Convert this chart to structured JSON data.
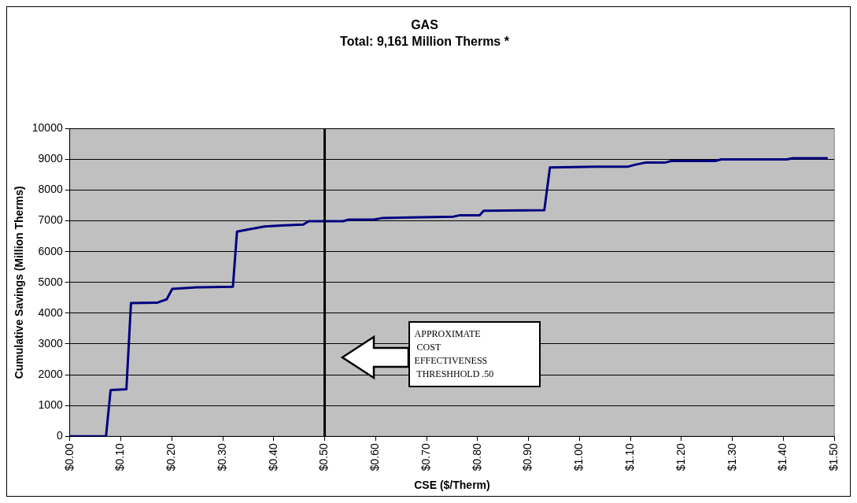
{
  "chart_data": {
    "type": "line",
    "title": "GAS",
    "subtitle": "Total: 9,161 Million Therms *",
    "xlabel": "CSE ($/Therm)",
    "ylabel": "Cumulative Savings (Million Therms)",
    "series": [
      {
        "color": "#000080",
        "x": [
          0,
          0.071,
          0.08,
          0.111,
          0.12,
          0.171,
          0.19,
          0.201,
          0.249,
          0.32,
          0.328,
          0.35,
          0.382,
          0.414,
          0.458,
          0.469,
          0.536,
          0.547,
          0.596,
          0.612,
          0.753,
          0.764,
          0.804,
          0.812,
          0.931,
          0.942,
          1.034,
          1.094,
          1.11,
          1.131,
          1.169,
          1.18,
          1.266,
          1.278,
          1.407,
          1.418,
          1.487
        ],
        "values": [
          0,
          0,
          1500,
          1530,
          4330,
          4340,
          4450,
          4790,
          4840,
          4860,
          6650,
          6720,
          6820,
          6850,
          6880,
          6990,
          6990,
          7040,
          7040,
          7090,
          7140,
          7180,
          7180,
          7330,
          7350,
          8740,
          8760,
          8760,
          8830,
          8900,
          8900,
          8950,
          8950,
          9000,
          9000,
          9040,
          9040
        ]
      }
    ],
    "xlim": [
      0,
      1.5
    ],
    "xticks": [
      {
        "value": 0,
        "label": "$0.00"
      },
      {
        "value": 0.1,
        "label": "$0.10"
      },
      {
        "value": 0.2,
        "label": "$0.20"
      },
      {
        "value": 0.3,
        "label": "$0.30"
      },
      {
        "value": 0.4,
        "label": "$0.40"
      },
      {
        "value": 0.5,
        "label": "$0.50"
      },
      {
        "value": 0.6,
        "label": "$0.60"
      },
      {
        "value": 0.7,
        "label": "$0.70"
      },
      {
        "value": 0.8,
        "label": "$0.80"
      },
      {
        "value": 0.9,
        "label": "$0.90"
      },
      {
        "value": 1,
        "label": "$1.00"
      },
      {
        "value": 1.1,
        "label": "$1.10"
      },
      {
        "value": 1.2,
        "label": "$1.20"
      },
      {
        "value": 1.3,
        "label": "$1.30"
      },
      {
        "value": 1.4,
        "label": "$1.40"
      },
      {
        "value": 1.5,
        "label": "$1.50"
      }
    ],
    "ylim": [
      0,
      10000
    ],
    "yticks": [
      0,
      1000,
      2000,
      3000,
      4000,
      5000,
      6000,
      7000,
      8000,
      9000,
      10000
    ],
    "grid": "y",
    "legend": false,
    "marker": "none",
    "line_style": "solid",
    "ref_lines": [
      {
        "axis": "x",
        "value": 0.5,
        "color": "#000000",
        "label": "APPROXIMATE\n COST\nEFFECTIVENESS\n THRESHHOLD .50"
      }
    ]
  }
}
